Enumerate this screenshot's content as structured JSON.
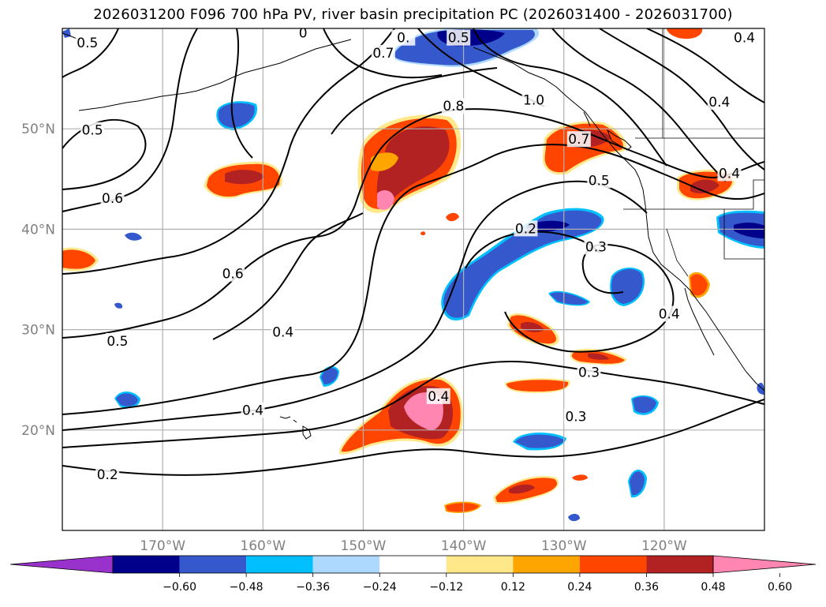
{
  "title": "2026031200 F096 700 hPa PV, river basin precipitation PC (2026031400 - 2026031700)",
  "map": {
    "lon_range": [
      -180,
      -110
    ],
    "lat_range": [
      10,
      60
    ],
    "lon_ticks": [
      {
        "value": -170,
        "label": "170°W"
      },
      {
        "value": -160,
        "label": "160°W"
      },
      {
        "value": -150,
        "label": "150°W"
      },
      {
        "value": -140,
        "label": "140°W"
      },
      {
        "value": -130,
        "label": "130°W"
      },
      {
        "value": -120,
        "label": "120°W"
      }
    ],
    "lat_ticks": [
      {
        "value": 50,
        "label": "50°N"
      },
      {
        "value": 40,
        "label": "40°N"
      },
      {
        "value": 30,
        "label": "30°N"
      },
      {
        "value": 20,
        "label": "20°N"
      }
    ],
    "tick_color": "#808080",
    "gridline_color": "#b0b0b0"
  },
  "contour_labels": [
    {
      "text": "0.5",
      "lon": -177.5,
      "lat": 58.5
    },
    {
      "text": "0",
      "lon": -156.0,
      "lat": 59.5
    },
    {
      "text": "0.7",
      "lon": -148.0,
      "lat": 57.5
    },
    {
      "text": "0.",
      "lon": -146.0,
      "lat": 59.0
    },
    {
      "text": "0.5",
      "lon": -140.5,
      "lat": 59.0
    },
    {
      "text": "0.4",
      "lon": -112.0,
      "lat": 59.0
    },
    {
      "text": "1.0",
      "lon": -133.0,
      "lat": 52.8
    },
    {
      "text": "0.8",
      "lon": -141.0,
      "lat": 52.2
    },
    {
      "text": "0.4",
      "lon": -114.5,
      "lat": 52.6
    },
    {
      "text": "0.5",
      "lon": -177.0,
      "lat": 49.8
    },
    {
      "text": "0.7",
      "lon": -128.5,
      "lat": 48.9
    },
    {
      "text": "0.5",
      "lon": -126.5,
      "lat": 44.8
    },
    {
      "text": "0.4",
      "lon": -113.5,
      "lat": 45.5
    },
    {
      "text": "0.6",
      "lon": -175.0,
      "lat": 43.0
    },
    {
      "text": "0.2",
      "lon": -133.8,
      "lat": 40.0
    },
    {
      "text": "0.3",
      "lon": -126.8,
      "lat": 38.2
    },
    {
      "text": "0.6",
      "lon": -163.0,
      "lat": 35.5
    },
    {
      "text": "0.4",
      "lon": -119.5,
      "lat": 31.5
    },
    {
      "text": "0.5",
      "lon": -174.5,
      "lat": 28.8
    },
    {
      "text": "0.4",
      "lon": -158.0,
      "lat": 29.7
    },
    {
      "text": "0.3",
      "lon": -127.5,
      "lat": 25.7
    },
    {
      "text": "0.4",
      "lon": -142.5,
      "lat": 23.3
    },
    {
      "text": "0.4",
      "lon": -161.0,
      "lat": 21.9
    },
    {
      "text": "0.3",
      "lon": -128.8,
      "lat": 21.3
    },
    {
      "text": "0.2",
      "lon": -175.5,
      "lat": 15.5
    }
  ],
  "colorbar": {
    "colors": [
      "#9932cc",
      "#00008b",
      "#3559cc",
      "#00bfff",
      "#add8ff",
      "#ffffff",
      "#ffe88a",
      "#ffa500",
      "#ff4500",
      "#b22222",
      "#ff86b0"
    ],
    "tick_labels": [
      "−0.60",
      "−0.48",
      "−0.36",
      "−0.24",
      "−0.12",
      "0.12",
      "0.24",
      "0.36",
      "0.48",
      "0.60"
    ]
  },
  "colors": {
    "contour": "#000000",
    "coast": "#000000"
  }
}
